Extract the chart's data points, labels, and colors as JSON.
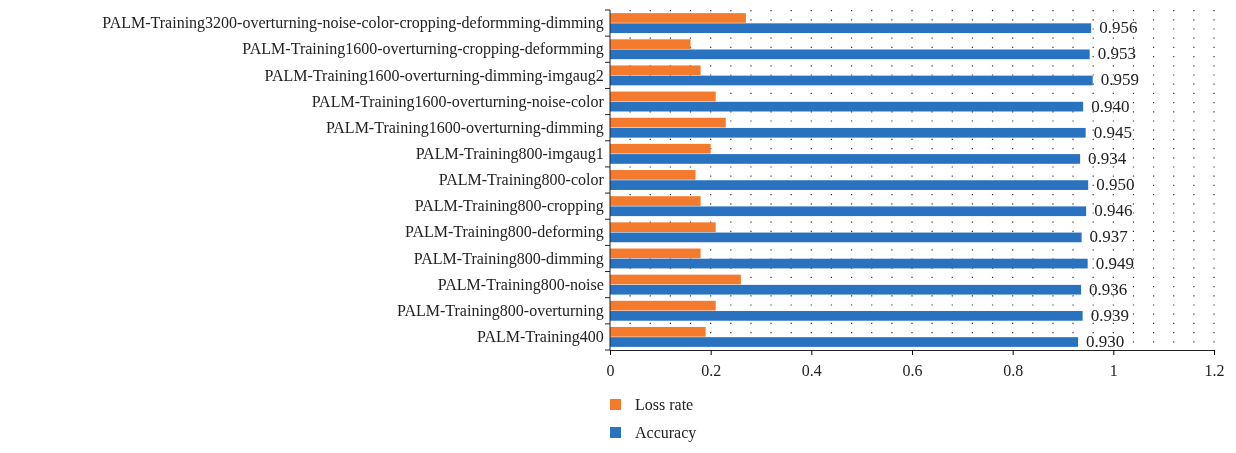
{
  "chart_data": {
    "type": "bar",
    "orientation": "horizontal",
    "categories": [
      "PALM-Training3200-overturning-noise-color-cropping-deformming-dimming",
      "PALM-Training1600-overturning-cropping-deformming",
      "PALM-Training1600-overturning-dimming-imgaug2",
      "PALM-Training1600-overturning-noise-color",
      "PALM-Training1600-overturning-dimming",
      "PALM-Training800-imgaug1",
      "PALM-Training800-color",
      "PALM-Training800-cropping",
      "PALM-Training800-deforming",
      "PALM-Training800-dimming",
      "PALM-Training800-noise",
      "PALM-Training800-overturning",
      "PALM-Training400"
    ],
    "series": [
      {
        "name": "Loss rate",
        "color": "#f47b2e",
        "values": [
          0.27,
          0.16,
          0.18,
          0.21,
          0.23,
          0.2,
          0.17,
          0.18,
          0.21,
          0.18,
          0.26,
          0.21,
          0.19
        ]
      },
      {
        "name": "Accuracy",
        "color": "#2872bf",
        "values": [
          0.956,
          0.953,
          0.959,
          0.94,
          0.945,
          0.934,
          0.95,
          0.946,
          0.937,
          0.949,
          0.936,
          0.939,
          0.93
        ],
        "value_labels": [
          "0.956",
          "0.953",
          "0.959",
          "0.940",
          "0.945",
          "0.934",
          "0.950",
          "0.946",
          "0.937",
          "0.949",
          "0.936",
          "0.939",
          "0.930"
        ]
      }
    ],
    "xlim": [
      0,
      1.2
    ],
    "xticks": [
      0,
      {
        "value": 0.04,
        "label": null
      },
      {
        "value": 0.08,
        "label": null
      },
      {
        "value": 0.12,
        "label": null
      },
      {
        "value": 0.16,
        "label": null
      },
      0.2,
      {
        "value": 0.24,
        "label": null
      },
      {
        "value": 0.28,
        "label": null
      },
      {
        "value": 0.32,
        "label": null
      },
      {
        "value": 0.36,
        "label": null
      },
      0.4,
      {
        "value": 0.44,
        "label": null
      },
      {
        "value": 0.48,
        "label": null
      },
      {
        "value": 0.52,
        "label": null
      },
      {
        "value": 0.56,
        "label": null
      },
      0.6,
      {
        "value": 0.64,
        "label": null
      },
      {
        "value": 0.68,
        "label": null
      },
      {
        "value": 0.72,
        "label": null
      },
      {
        "value": 0.76,
        "label": null
      },
      0.8,
      {
        "value": 0.84,
        "label": null
      },
      {
        "value": 0.88,
        "label": null
      },
      {
        "value": 0.92,
        "label": null
      },
      {
        "value": 0.96,
        "label": null
      },
      1,
      {
        "value": 1.04,
        "label": null
      },
      {
        "value": 1.08,
        "label": null
      },
      {
        "value": 1.12,
        "label": null
      },
      {
        "value": 1.16,
        "label": null
      },
      1.2
    ],
    "grid": "x",
    "legend": "bottom"
  }
}
